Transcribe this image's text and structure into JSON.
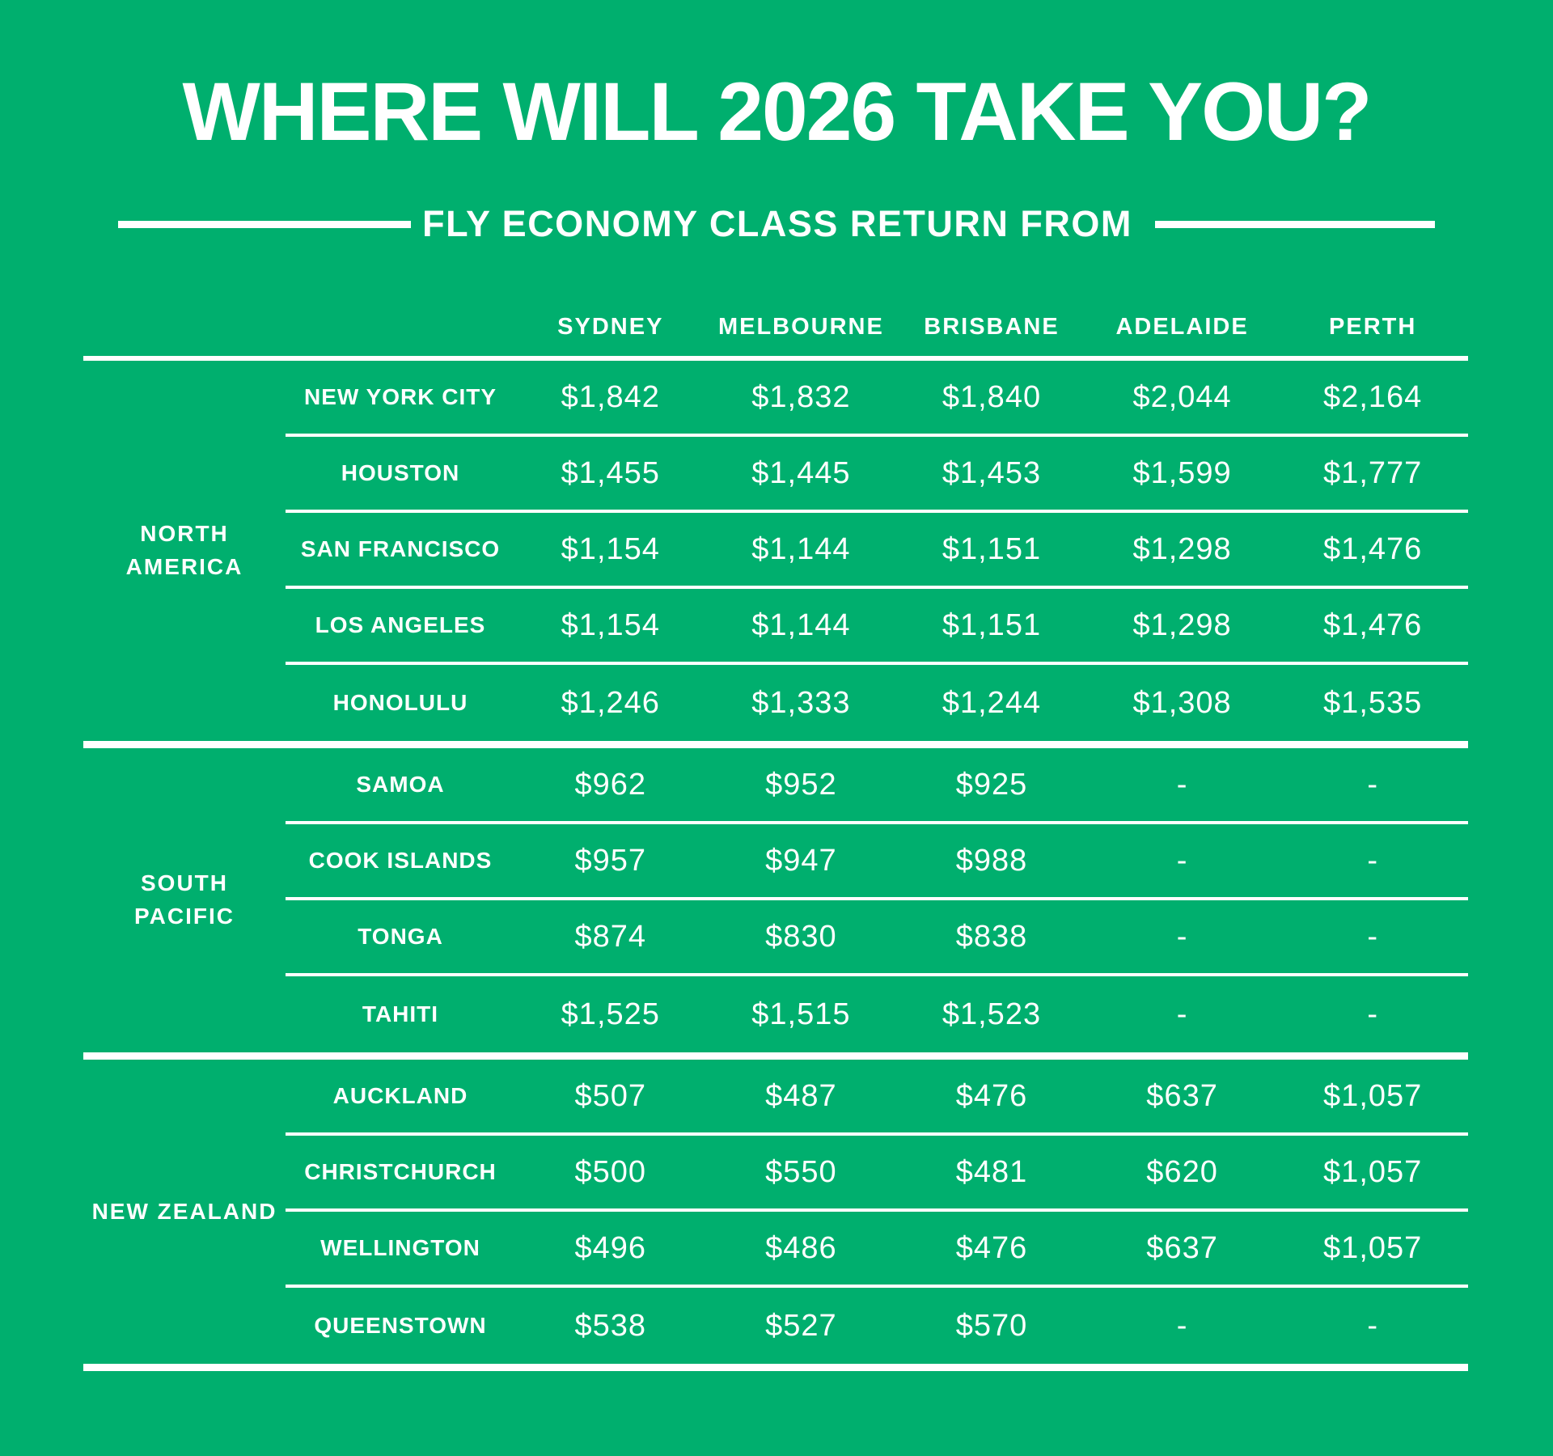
{
  "colors": {
    "background": "#00AF6E",
    "text": "#FFFFFF"
  },
  "header": {
    "title": "WHERE WILL 2026 TAKE YOU?",
    "subtitle": "FLY ECONOMY CLASS RETURN FROM"
  },
  "table": {
    "columns": [
      "SYDNEY",
      "MELBOURNE",
      "BRISBANE",
      "ADELAIDE",
      "PERTH"
    ],
    "groups": [
      {
        "label": [
          "NORTH",
          "AMERICA"
        ],
        "rows": [
          {
            "city": "NEW YORK CITY",
            "prices": [
              "$1,842",
              "$1,832",
              "$1,840",
              "$2,044",
              "$2,164"
            ]
          },
          {
            "city": "HOUSTON",
            "prices": [
              "$1,455",
              "$1,445",
              "$1,453",
              "$1,599",
              "$1,777"
            ]
          },
          {
            "city": "SAN FRANCISCO",
            "prices": [
              "$1,154",
              "$1,144",
              "$1,151",
              "$1,298",
              "$1,476"
            ]
          },
          {
            "city": "LOS ANGELES",
            "prices": [
              "$1,154",
              "$1,144",
              "$1,151",
              "$1,298",
              "$1,476"
            ]
          },
          {
            "city": "HONOLULU",
            "prices": [
              "$1,246",
              "$1,333",
              "$1,244",
              "$1,308",
              "$1,535"
            ]
          }
        ]
      },
      {
        "label": [
          "SOUTH",
          "PACIFIC"
        ],
        "rows": [
          {
            "city": "SAMOA",
            "prices": [
              "$962",
              "$952",
              "$925",
              "-",
              "-"
            ]
          },
          {
            "city": "COOK ISLANDS",
            "prices": [
              "$957",
              "$947",
              "$988",
              "-",
              "-"
            ]
          },
          {
            "city": "TONGA",
            "prices": [
              "$874",
              "$830",
              "$838",
              "-",
              "-"
            ]
          },
          {
            "city": "TAHITI",
            "prices": [
              "$1,525",
              "$1,515",
              "$1,523",
              "-",
              "-"
            ]
          }
        ]
      },
      {
        "label": [
          "NEW ZEALAND"
        ],
        "rows": [
          {
            "city": "AUCKLAND",
            "prices": [
              "$507",
              "$487",
              "$476",
              "$637",
              "$1,057"
            ]
          },
          {
            "city": "CHRISTCHURCH",
            "prices": [
              "$500",
              "$550",
              "$481",
              "$620",
              "$1,057"
            ]
          },
          {
            "city": "WELLINGTON",
            "prices": [
              "$496",
              "$486",
              "$476",
              "$637",
              "$1,057"
            ]
          },
          {
            "city": "QUEENSTOWN",
            "prices": [
              "$538",
              "$527",
              "$570",
              "-",
              "-"
            ]
          }
        ]
      }
    ]
  },
  "chart_data": {
    "type": "table",
    "title": "WHERE WILL 2026 TAKE YOU?",
    "subtitle": "FLY ECONOMY CLASS RETURN FROM",
    "currency_symbol": "$",
    "columns": [
      "SYDNEY",
      "MELBOURNE",
      "BRISBANE",
      "ADELAIDE",
      "PERTH"
    ],
    "row_groups": [
      {
        "region": "NORTH AMERICA",
        "rows": [
          {
            "destination": "NEW YORK CITY",
            "values": [
              1842,
              1832,
              1840,
              2044,
              2164
            ]
          },
          {
            "destination": "HOUSTON",
            "values": [
              1455,
              1445,
              1453,
              1599,
              1777
            ]
          },
          {
            "destination": "SAN FRANCISCO",
            "values": [
              1154,
              1144,
              1151,
              1298,
              1476
            ]
          },
          {
            "destination": "LOS ANGELES",
            "values": [
              1154,
              1144,
              1151,
              1298,
              1476
            ]
          },
          {
            "destination": "HONOLULU",
            "values": [
              1246,
              1333,
              1244,
              1308,
              1535
            ]
          }
        ]
      },
      {
        "region": "SOUTH PACIFIC",
        "rows": [
          {
            "destination": "SAMOA",
            "values": [
              962,
              952,
              925,
              null,
              null
            ]
          },
          {
            "destination": "COOK ISLANDS",
            "values": [
              957,
              947,
              988,
              null,
              null
            ]
          },
          {
            "destination": "TONGA",
            "values": [
              874,
              830,
              838,
              null,
              null
            ]
          },
          {
            "destination": "TAHITI",
            "values": [
              1525,
              1515,
              1523,
              null,
              null
            ]
          }
        ]
      },
      {
        "region": "NEW ZEALAND",
        "rows": [
          {
            "destination": "AUCKLAND",
            "values": [
              507,
              487,
              476,
              637,
              1057
            ]
          },
          {
            "destination": "CHRISTCHURCH",
            "values": [
              500,
              550,
              481,
              620,
              1057
            ]
          },
          {
            "destination": "WELLINGTON",
            "values": [
              496,
              486,
              476,
              637,
              1057
            ]
          },
          {
            "destination": "QUEENSTOWN",
            "values": [
              538,
              527,
              570,
              null,
              null
            ]
          }
        ]
      }
    ]
  }
}
